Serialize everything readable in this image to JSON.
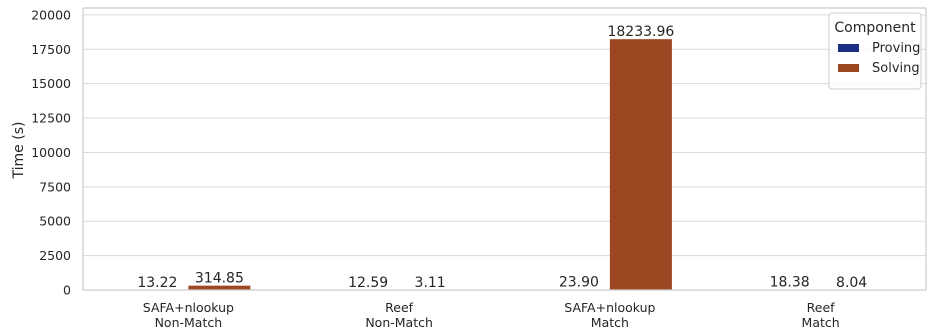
{
  "chart_data": {
    "type": "bar",
    "title": "",
    "xlabel": "",
    "ylabel": "Time (s)",
    "ylim": [
      0,
      20500
    ],
    "yticks": [
      0,
      2500,
      5000,
      7500,
      10000,
      12500,
      15000,
      17500,
      20000
    ],
    "grid": true,
    "legend_position": "top-right",
    "categories": [
      [
        "SAFA+nlookup",
        "Non-Match"
      ],
      [
        "Reef",
        "Non-Match"
      ],
      [
        "SAFA+nlookup",
        "Match"
      ],
      [
        "Reef",
        "Match"
      ]
    ],
    "legend_title": "Component",
    "series": [
      {
        "name": "Proving",
        "color": "#1a2e86",
        "values": [
          13.22,
          12.59,
          23.9,
          18.38
        ],
        "labels": [
          "13.22",
          "12.59",
          "23.90",
          "18.38"
        ]
      },
      {
        "name": "Solving",
        "color": "#9c4622",
        "values": [
          314.85,
          3.11,
          18233.96,
          8.04
        ],
        "labels": [
          "314.85",
          "3.11",
          "18233.96",
          "8.04"
        ]
      }
    ]
  }
}
